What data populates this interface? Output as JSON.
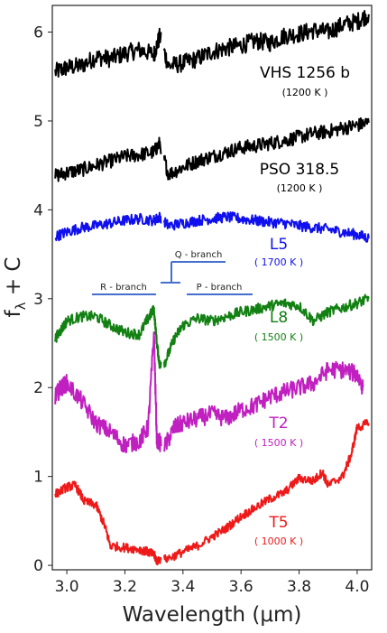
{
  "chart_data": {
    "type": "line",
    "xlabel": "Wavelength (μm)",
    "ylabel": "f_λ + C",
    "xlim": [
      2.95,
      4.05
    ],
    "ylim": [
      -0.05,
      6.3
    ],
    "grid": false,
    "xticks": [
      "3.0",
      "3.2",
      "3.4",
      "3.6",
      "3.8",
      "4.0"
    ],
    "yticks": [
      "0",
      "1",
      "2",
      "3",
      "4",
      "5",
      "6"
    ],
    "series": [
      {
        "name": "VHS 1256 b",
        "temp": "(1200 K )",
        "color": "#000000",
        "x": [
          2.96,
          3.0,
          3.05,
          3.1,
          3.15,
          3.2,
          3.25,
          3.3,
          3.32,
          3.35,
          3.4,
          3.45,
          3.5,
          3.55,
          3.6,
          3.65,
          3.7,
          3.75,
          3.8,
          3.85,
          3.9,
          3.95,
          4.0,
          4.04
        ],
        "y": [
          5.55,
          5.6,
          5.62,
          5.72,
          5.7,
          5.76,
          5.8,
          5.75,
          5.95,
          5.62,
          5.65,
          5.7,
          5.78,
          5.82,
          5.85,
          5.9,
          5.88,
          5.96,
          5.98,
          6.02,
          6.0,
          6.08,
          6.12,
          6.2
        ],
        "noise": 0.1
      },
      {
        "name": "PSO 318.5",
        "temp": "(1200 K )",
        "color": "#000000",
        "x": [
          2.96,
          3.0,
          3.05,
          3.1,
          3.15,
          3.2,
          3.25,
          3.3,
          3.32,
          3.35,
          3.4,
          3.45,
          3.5,
          3.55,
          3.6,
          3.65,
          3.7,
          3.75,
          3.8,
          3.85,
          3.9,
          3.95,
          4.0,
          4.04
        ],
        "y": [
          4.38,
          4.42,
          4.45,
          4.5,
          4.55,
          4.6,
          4.62,
          4.65,
          4.75,
          4.4,
          4.48,
          4.55,
          4.6,
          4.65,
          4.7,
          4.72,
          4.75,
          4.78,
          4.82,
          4.86,
          4.88,
          4.92,
          4.95,
          4.98
        ],
        "noise": 0.08
      },
      {
        "name": "L5",
        "temp": "( 1700 K )",
        "color": "#1010ee",
        "x": [
          2.96,
          3.0,
          3.05,
          3.1,
          3.15,
          3.2,
          3.25,
          3.3,
          3.32,
          3.35,
          3.4,
          3.45,
          3.5,
          3.55,
          3.6,
          3.65,
          3.7,
          3.75,
          3.8,
          3.85,
          3.9,
          3.95,
          4.0,
          4.04
        ],
        "y": [
          3.7,
          3.75,
          3.8,
          3.82,
          3.85,
          3.88,
          3.9,
          3.88,
          3.92,
          3.82,
          3.85,
          3.88,
          3.9,
          3.92,
          3.9,
          3.88,
          3.86,
          3.85,
          3.82,
          3.8,
          3.78,
          3.75,
          3.72,
          3.68
        ],
        "noise": 0.06
      },
      {
        "name": "L8",
        "temp": "( 1500 K )",
        "color": "#128012",
        "x": [
          2.96,
          2.98,
          3.0,
          3.05,
          3.1,
          3.15,
          3.2,
          3.25,
          3.28,
          3.3,
          3.31,
          3.32,
          3.34,
          3.37,
          3.4,
          3.45,
          3.5,
          3.55,
          3.6,
          3.65,
          3.7,
          3.75,
          3.8,
          3.85,
          3.9,
          3.95,
          4.0,
          4.04
        ],
        "y": [
          2.55,
          2.65,
          2.75,
          2.8,
          2.8,
          2.7,
          2.62,
          2.6,
          2.78,
          2.88,
          2.5,
          2.25,
          2.3,
          2.55,
          2.7,
          2.78,
          2.75,
          2.8,
          2.85,
          2.88,
          2.92,
          2.95,
          2.92,
          2.75,
          2.85,
          2.9,
          2.95,
          3.0
        ],
        "noise": 0.06
      },
      {
        "name": "T2",
        "temp": "( 1500 K )",
        "color": "#c020c0",
        "x": [
          2.96,
          2.98,
          3.0,
          3.05,
          3.1,
          3.15,
          3.2,
          3.25,
          3.28,
          3.3,
          3.31,
          3.34,
          3.37,
          3.4,
          3.45,
          3.5,
          3.55,
          3.6,
          3.65,
          3.7,
          3.75,
          3.8,
          3.85,
          3.9,
          3.95,
          4.0,
          4.02
        ],
        "y": [
          1.9,
          2.0,
          2.05,
          1.85,
          1.6,
          1.5,
          1.35,
          1.4,
          1.55,
          2.6,
          1.4,
          1.35,
          1.55,
          1.6,
          1.65,
          1.7,
          1.65,
          1.75,
          1.8,
          1.9,
          1.95,
          2.0,
          2.05,
          2.2,
          2.2,
          2.15,
          2.0
        ],
        "noise": 0.1
      },
      {
        "name": "T5",
        "temp": "( 1000 K )",
        "color": "#ee1a1a",
        "x": [
          2.96,
          3.0,
          3.03,
          3.06,
          3.1,
          3.13,
          3.15,
          3.2,
          3.25,
          3.28,
          3.3,
          3.31,
          3.35,
          3.4,
          3.45,
          3.5,
          3.55,
          3.6,
          3.65,
          3.7,
          3.75,
          3.8,
          3.85,
          3.88,
          3.9,
          3.95,
          3.98,
          4.0,
          4.04
        ],
        "y": [
          0.8,
          0.88,
          0.9,
          0.72,
          0.68,
          0.45,
          0.22,
          0.2,
          0.18,
          0.15,
          0.12,
          0.05,
          0.08,
          0.15,
          0.22,
          0.32,
          0.42,
          0.55,
          0.65,
          0.75,
          0.82,
          0.98,
          0.95,
          1.05,
          0.9,
          1.0,
          1.25,
          1.55,
          1.6
        ],
        "noise": 0.05
      }
    ],
    "annotations": {
      "r_branch": "R - branch",
      "q_branch": "Q - branch",
      "p_branch": "P - branch",
      "annotation_color": "#4470cc"
    }
  }
}
